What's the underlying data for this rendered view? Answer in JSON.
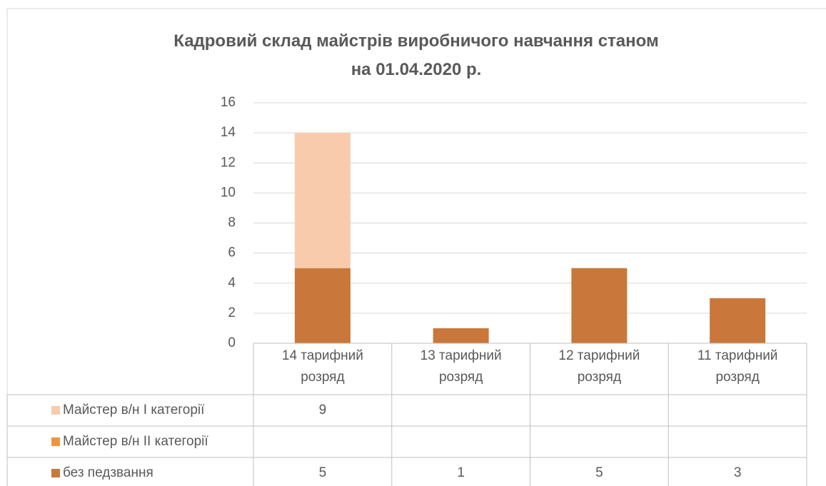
{
  "chart_data": {
    "type": "stacked_bar",
    "title": "Кадровий склад майстрів виробничого навчання станом на 01.04.2020 р.",
    "categories": [
      "14 тарифний розряд",
      "13 тарифний розряд",
      "12 тарифний розряд",
      "11 тарифний розряд"
    ],
    "series": [
      {
        "name": "Майстер в/н І категорії",
        "color": "#f8cbad",
        "values": [
          9,
          null,
          null,
          null
        ]
      },
      {
        "name": "Майстер в/н ІІ категорії",
        "color": "#f4933f",
        "values": [
          null,
          null,
          null,
          null
        ]
      },
      {
        "name": "без педзвання",
        "color": "#c9773a",
        "values": [
          5,
          1,
          5,
          3
        ]
      }
    ],
    "ylim": [
      0,
      16
    ],
    "yticks": [
      0,
      2,
      4,
      6,
      8,
      10,
      12,
      14,
      16
    ],
    "grid": true,
    "data_table": true
  }
}
